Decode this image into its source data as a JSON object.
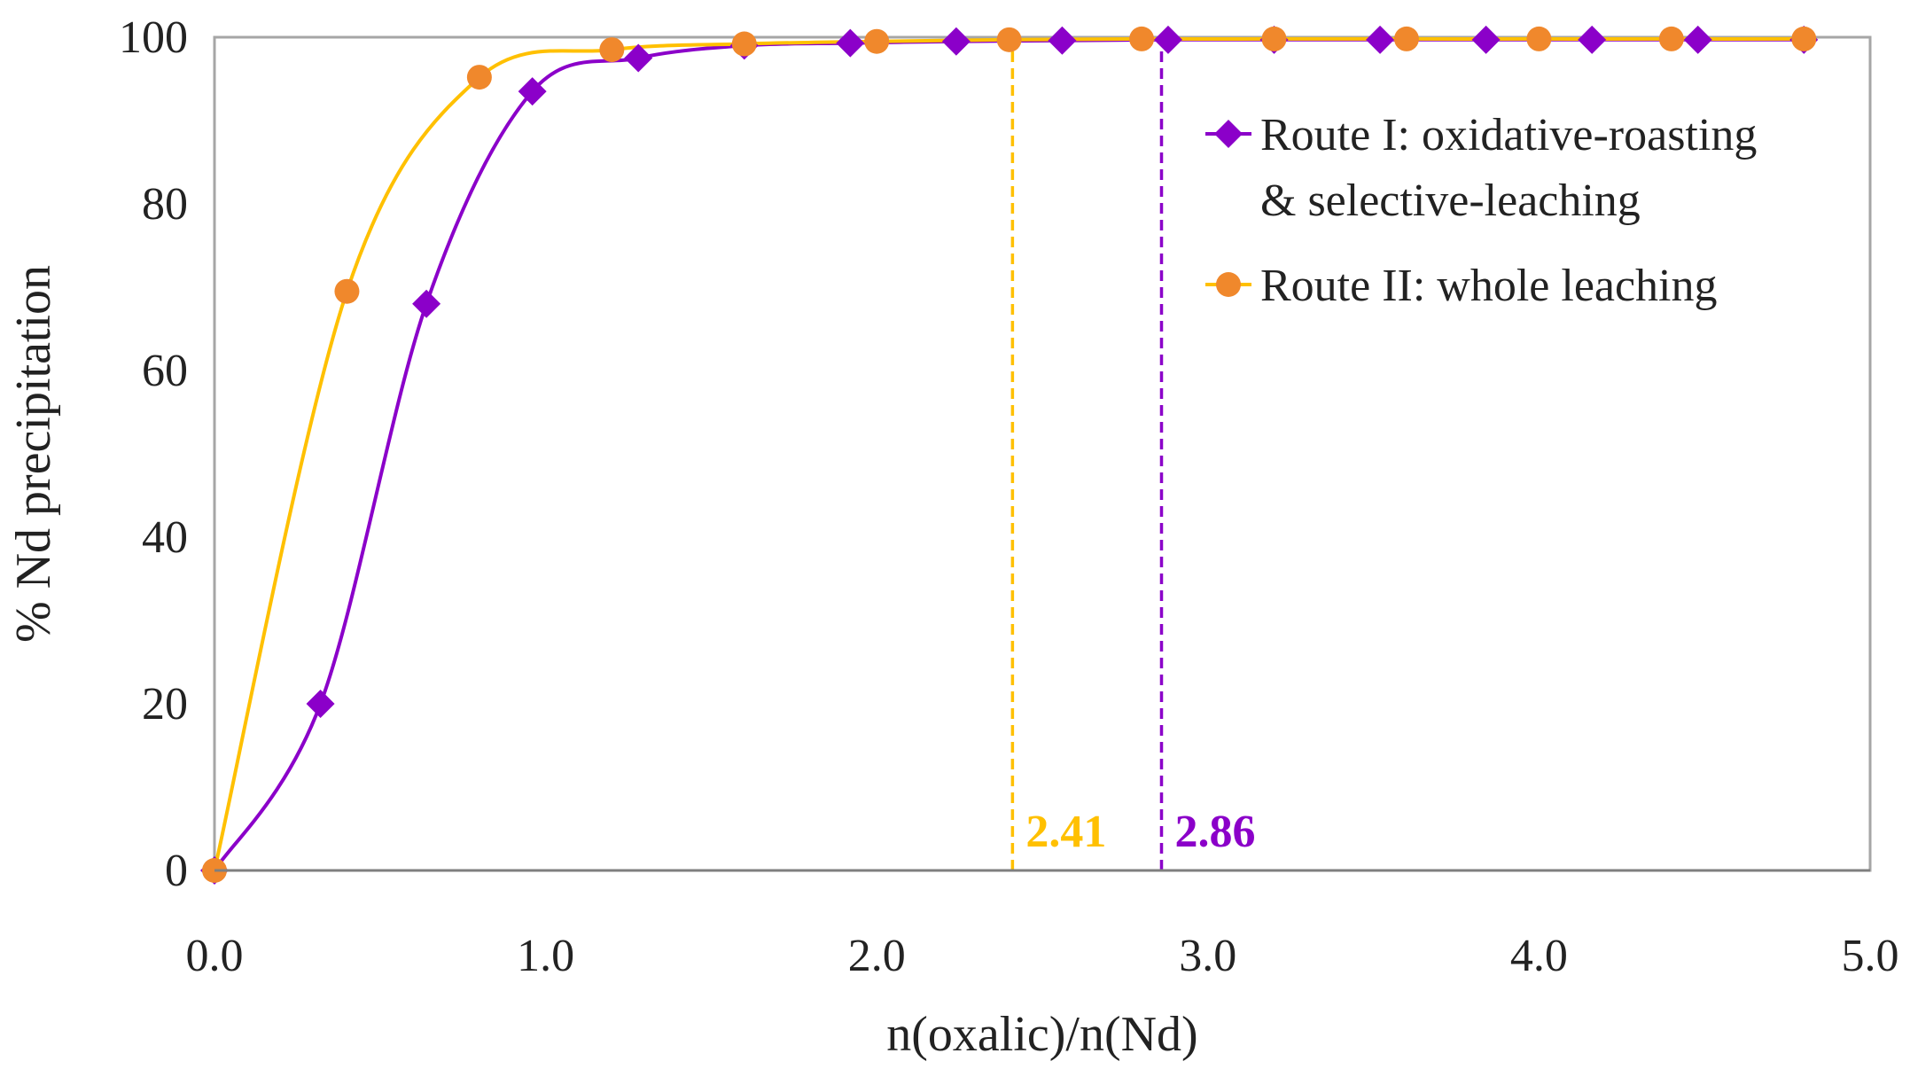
{
  "chart_data": {
    "type": "scatter",
    "title": "",
    "xlabel": "n(oxalic)/n(Nd)",
    "ylabel": "% Nd precipitation",
    "xlim": [
      0,
      5
    ],
    "ylim": [
      0,
      100
    ],
    "xticks": [
      0,
      1,
      2,
      3,
      4,
      5
    ],
    "xtick_labels": [
      "0.0",
      "1.0",
      "2.0",
      "3.0",
      "4.0",
      "5.0"
    ],
    "yticks": [
      0,
      20,
      40,
      60,
      80,
      100
    ],
    "ytick_labels": [
      "0",
      "20",
      "40",
      "60",
      "80",
      "100"
    ],
    "grid": false,
    "legend_position": "top-right",
    "series": [
      {
        "name": "Route I: oxidative-roasting & selective-leaching",
        "legend_lines": [
          "Route I: oxidative-roasting",
          "& selective-leaching"
        ],
        "color": "#8b00c9",
        "marker": "diamond",
        "x": [
          0,
          0.32,
          0.64,
          0.96,
          1.28,
          1.6,
          1.92,
          2.24,
          2.56,
          2.88,
          3.2,
          3.52,
          3.84,
          4.16,
          4.48,
          4.8
        ],
        "y": [
          0,
          20,
          68,
          93.5,
          97.5,
          99,
          99.3,
          99.5,
          99.6,
          99.7,
          99.7,
          99.7,
          99.7,
          99.7,
          99.7,
          99.7
        ]
      },
      {
        "name": "Route II: whole leaching",
        "legend_lines": [
          "Route II: whole leaching"
        ],
        "color": "#ffc000",
        "marker_fill": "#f0882c",
        "marker": "circle",
        "x": [
          0,
          0.4,
          0.8,
          1.2,
          1.6,
          2.0,
          2.4,
          2.8,
          3.2,
          3.6,
          4.0,
          4.4,
          4.8
        ],
        "y": [
          0,
          69.5,
          95.2,
          98.5,
          99.2,
          99.5,
          99.7,
          99.8,
          99.8,
          99.8,
          99.8,
          99.8,
          99.8
        ]
      }
    ],
    "annotations": [
      {
        "x": 2.41,
        "label": "2.41",
        "color": "#ffc000"
      },
      {
        "x": 2.86,
        "label": "2.86",
        "color": "#8b00c9"
      }
    ]
  }
}
